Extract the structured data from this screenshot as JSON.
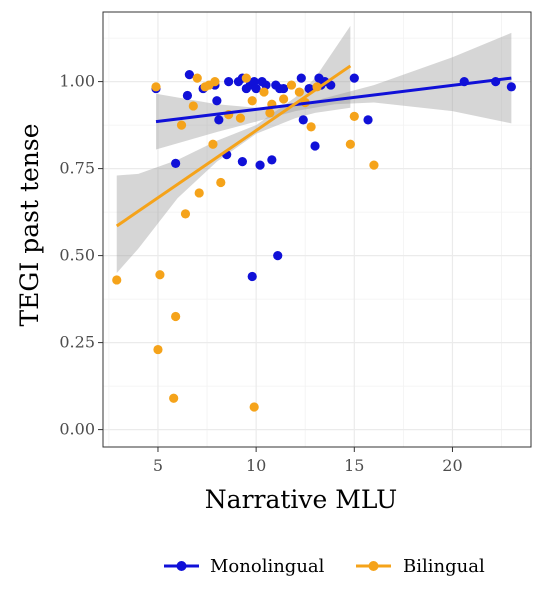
{
  "chart_data": {
    "type": "scatter",
    "title": "",
    "xlabel": "Narrative MLU",
    "ylabel": "TEGI past tense",
    "xlim": [
      2.2,
      24
    ],
    "ylim": [
      -0.05,
      1.2
    ],
    "x_ticks": [
      5,
      10,
      15,
      20
    ],
    "y_ticks": [
      0.0,
      0.25,
      0.5,
      0.75,
      1.0
    ],
    "x_tick_labels": [
      "5",
      "10",
      "15",
      "20"
    ],
    "y_tick_labels": [
      "0.00",
      "0.25",
      "0.50",
      "0.75",
      "1.00"
    ],
    "grid": true,
    "legend_position": "bottom",
    "series": [
      {
        "name": "Monolingual",
        "color": "#1010d8",
        "points": [
          [
            4.9,
            0.98
          ],
          [
            5.9,
            0.765
          ],
          [
            6.5,
            0.96
          ],
          [
            6.6,
            1.02
          ],
          [
            7.3,
            0.98
          ],
          [
            7.9,
            0.99
          ],
          [
            8.0,
            0.945
          ],
          [
            8.1,
            0.89
          ],
          [
            8.5,
            0.79
          ],
          [
            8.6,
            1.0
          ],
          [
            9.1,
            1.0
          ],
          [
            9.3,
            0.77
          ],
          [
            9.3,
            1.01
          ],
          [
            9.5,
            0.98
          ],
          [
            9.7,
            0.99
          ],
          [
            9.8,
            0.44
          ],
          [
            9.9,
            1.0
          ],
          [
            10.0,
            0.98
          ],
          [
            10.2,
            0.76
          ],
          [
            10.3,
            1.0
          ],
          [
            10.5,
            0.99
          ],
          [
            10.8,
            0.775
          ],
          [
            11.0,
            0.99
          ],
          [
            11.1,
            0.5
          ],
          [
            11.2,
            0.98
          ],
          [
            11.4,
            0.98
          ],
          [
            12.3,
            1.01
          ],
          [
            12.4,
            0.89
          ],
          [
            12.7,
            0.98
          ],
          [
            13.0,
            0.815
          ],
          [
            13.2,
            1.01
          ],
          [
            13.3,
            0.99
          ],
          [
            13.5,
            1.0
          ],
          [
            13.8,
            0.99
          ],
          [
            15.0,
            1.01
          ],
          [
            15.7,
            0.89
          ],
          [
            20.6,
            1.0
          ],
          [
            22.2,
            1.0
          ],
          [
            23.0,
            0.985
          ]
        ],
        "trend": {
          "x": [
            4.9,
            23.0
          ],
          "y": [
            0.885,
            1.01
          ]
        },
        "band": {
          "x": [
            4.9,
            8,
            10,
            12,
            14,
            16,
            20,
            23.0
          ],
          "lo": [
            0.805,
            0.855,
            0.885,
            0.915,
            0.935,
            0.94,
            0.915,
            0.88
          ],
          "hi": [
            0.965,
            0.935,
            0.925,
            0.93,
            0.96,
            0.99,
            1.07,
            1.14
          ]
        }
      },
      {
        "name": "Bilingual",
        "color": "#f5a31a",
        "points": [
          [
            2.9,
            0.43
          ],
          [
            4.9,
            0.985
          ],
          [
            5.0,
            0.23
          ],
          [
            5.1,
            0.445
          ],
          [
            5.8,
            0.09
          ],
          [
            5.9,
            0.325
          ],
          [
            6.2,
            0.875
          ],
          [
            6.4,
            0.62
          ],
          [
            6.8,
            0.93
          ],
          [
            7.0,
            1.01
          ],
          [
            7.1,
            0.68
          ],
          [
            7.4,
            0.985
          ],
          [
            7.6,
            0.99
          ],
          [
            7.8,
            0.82
          ],
          [
            7.9,
            1.0
          ],
          [
            8.2,
            0.71
          ],
          [
            8.6,
            0.905
          ],
          [
            9.2,
            0.895
          ],
          [
            9.5,
            1.01
          ],
          [
            9.8,
            0.945
          ],
          [
            9.9,
            0.065
          ],
          [
            10.4,
            0.97
          ],
          [
            10.7,
            0.91
          ],
          [
            10.8,
            0.935
          ],
          [
            11.4,
            0.95
          ],
          [
            11.8,
            0.99
          ],
          [
            12.2,
            0.97
          ],
          [
            12.5,
            0.94
          ],
          [
            12.8,
            0.87
          ],
          [
            13.1,
            0.985
          ],
          [
            14.8,
            0.82
          ],
          [
            15.0,
            0.9
          ],
          [
            16.0,
            0.76
          ]
        ],
        "trend": {
          "x": [
            2.9,
            14.8
          ],
          "y": [
            0.585,
            1.045
          ]
        },
        "band": {
          "x": [
            2.9,
            4,
            6,
            8,
            10,
            12,
            13,
            14.8
          ],
          "lo": [
            0.45,
            0.52,
            0.665,
            0.77,
            0.85,
            0.895,
            0.91,
            0.925
          ],
          "hi": [
            0.73,
            0.735,
            0.775,
            0.83,
            0.875,
            0.955,
            1.01,
            1.16
          ]
        }
      }
    ]
  }
}
